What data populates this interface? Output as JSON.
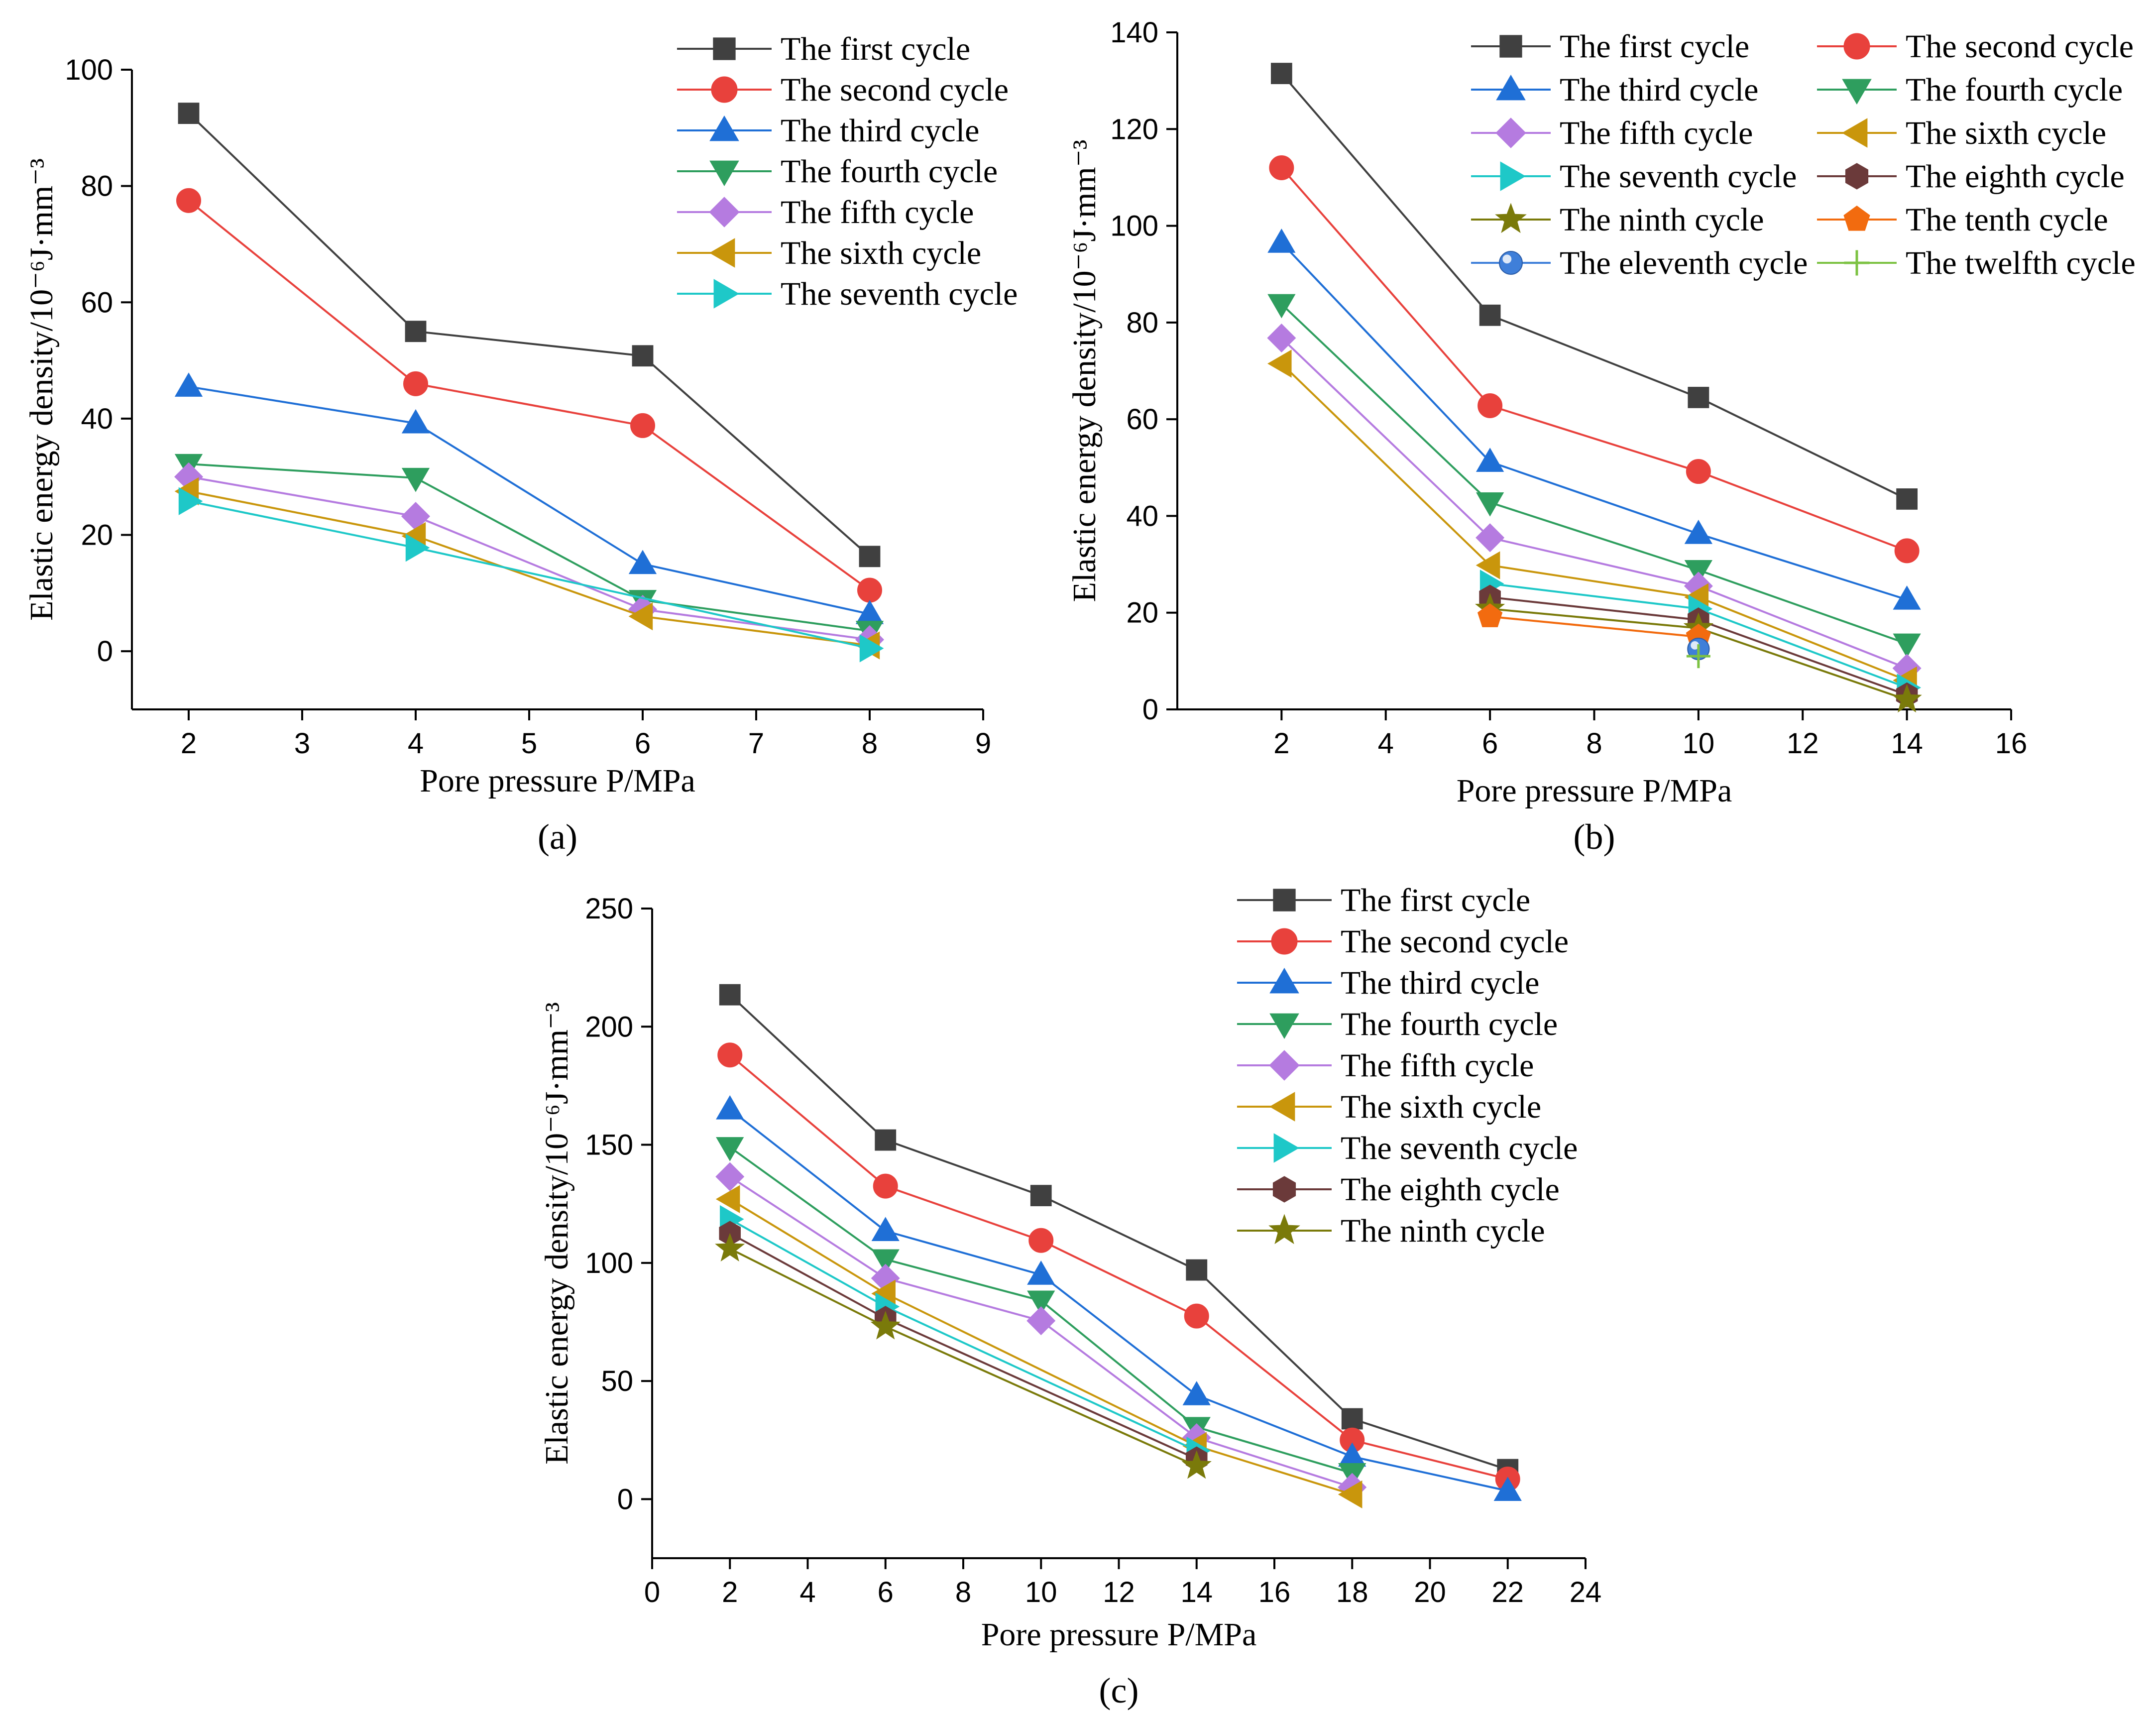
{
  "chart_data": [
    {
      "type": "line",
      "panel_label": "(a)",
      "xlabel": "Pore pressure  P/MPa",
      "ylabel": "Elastic energy density/10⁻⁶J·mm⁻³",
      "xlim": [
        1.5,
        9
      ],
      "ylim": [
        -10,
        100
      ],
      "xticks": [
        2,
        3,
        4,
        5,
        6,
        7,
        8,
        9
      ],
      "yticks": [
        0,
        20,
        40,
        60,
        80,
        100
      ],
      "legend_position": "top-right",
      "legend_columns": 1,
      "series": [
        {
          "name": "The first cycle",
          "color": "#404040",
          "marker": "square",
          "x": [
            2,
            4,
            6,
            8
          ],
          "y": [
            92.5,
            55,
            50.8,
            16.3
          ]
        },
        {
          "name": "The second cycle",
          "color": "#e8413c",
          "marker": "circle",
          "x": [
            2,
            4,
            6,
            8
          ],
          "y": [
            77.5,
            46,
            38.8,
            10.5
          ]
        },
        {
          "name": "The third cycle",
          "color": "#1f6fd6",
          "marker": "triangle-up",
          "x": [
            2,
            4,
            6,
            8
          ],
          "y": [
            45.5,
            39.2,
            15,
            6.4
          ]
        },
        {
          "name": "The fourth cycle",
          "color": "#2e9e5e",
          "marker": "triangle-down",
          "x": [
            2,
            4,
            6,
            8
          ],
          "y": [
            32.2,
            29.8,
            8.8,
            3.5
          ]
        },
        {
          "name": "The fifth cycle",
          "color": "#b57be0",
          "marker": "diamond",
          "x": [
            2,
            4,
            6,
            8
          ],
          "y": [
            30,
            23.2,
            7.2,
            2
          ]
        },
        {
          "name": "The sixth cycle",
          "color": "#c9960c",
          "marker": "triangle-left",
          "x": [
            2,
            4,
            6,
            8
          ],
          "y": [
            27.5,
            19.8,
            6,
            1
          ]
        },
        {
          "name": "The seventh cycle",
          "color": "#1ec8c8",
          "marker": "triangle-right",
          "x": [
            2,
            4,
            8
          ],
          "y": [
            25.8,
            17.8,
            0.5
          ]
        }
      ]
    },
    {
      "type": "line",
      "panel_label": "(b)",
      "xlabel": "Pore pressure  P/MPa",
      "ylabel": "Elastic energy density/10⁻⁶J·mm⁻³",
      "xlim": [
        0,
        16
      ],
      "ylim": [
        0,
        140
      ],
      "xticks": [
        2,
        4,
        6,
        8,
        10,
        12,
        14,
        16
      ],
      "yticks": [
        0,
        20,
        40,
        60,
        80,
        100,
        120,
        140
      ],
      "legend_position": "top",
      "legend_columns": 2,
      "series": [
        {
          "name": "The first cycle",
          "color": "#404040",
          "marker": "square",
          "x": [
            2,
            6,
            10,
            14
          ],
          "y": [
            131.5,
            81.5,
            64.5,
            43.5
          ]
        },
        {
          "name": "The second cycle",
          "color": "#e8413c",
          "marker": "circle",
          "x": [
            2,
            6,
            10,
            14
          ],
          "y": [
            112,
            62.8,
            49.2,
            32.8
          ]
        },
        {
          "name": "The third cycle",
          "color": "#1f6fd6",
          "marker": "triangle-up",
          "x": [
            2,
            6,
            10,
            14
          ],
          "y": [
            96.5,
            51.2,
            36.3,
            22.7
          ]
        },
        {
          "name": "The fourth cycle",
          "color": "#2e9e5e",
          "marker": "triangle-down",
          "x": [
            2,
            6,
            10,
            14
          ],
          "y": [
            83.8,
            42.8,
            28.8,
            13.6
          ]
        },
        {
          "name": "The fifth cycle",
          "color": "#b57be0",
          "marker": "diamond",
          "x": [
            2,
            6,
            10,
            14
          ],
          "y": [
            76.8,
            35.5,
            25.5,
            8.5
          ]
        },
        {
          "name": "The sixth cycle",
          "color": "#c9960c",
          "marker": "triangle-left",
          "x": [
            2,
            6,
            10,
            14
          ],
          "y": [
            71.5,
            29.8,
            23.2,
            6
          ]
        },
        {
          "name": "The seventh cycle",
          "color": "#1ec8c8",
          "marker": "triangle-right",
          "x": [
            6,
            10,
            14
          ],
          "y": [
            26,
            20.8,
            4.5
          ]
        },
        {
          "name": "The eighth cycle",
          "color": "#6b3a3a",
          "marker": "hexagon",
          "x": [
            6,
            10,
            14
          ],
          "y": [
            23.2,
            18.5,
            3
          ]
        },
        {
          "name": "The ninth cycle",
          "color": "#7a7a0a",
          "marker": "star",
          "x": [
            6,
            10,
            14
          ],
          "y": [
            20.8,
            16.8,
            2
          ]
        },
        {
          "name": "The tenth cycle",
          "color": "#f26b0f",
          "marker": "pentagon",
          "x": [
            6,
            10
          ],
          "y": [
            19.2,
            15
          ]
        },
        {
          "name": "The eleventh cycle",
          "color": "#3f7fd9",
          "marker": "sphere",
          "x": [
            10
          ],
          "y": [
            12.5
          ]
        },
        {
          "name": "The twelfth cycle",
          "color": "#7cc242",
          "marker": "plus",
          "x": [
            10
          ],
          "y": [
            11
          ]
        }
      ]
    },
    {
      "type": "line",
      "panel_label": "(c)",
      "xlabel": "Pore pressure  P/MPa",
      "ylabel": "Elastic energy density/10⁻⁶J·mm⁻³",
      "xlim": [
        0,
        24
      ],
      "ylim": [
        -25,
        250
      ],
      "xticks": [
        0,
        2,
        4,
        6,
        8,
        10,
        12,
        14,
        16,
        18,
        20,
        22,
        24
      ],
      "yticks": [
        0,
        50,
        100,
        150,
        200,
        250
      ],
      "legend_position": "top-right",
      "legend_columns": 1,
      "series": [
        {
          "name": "The first cycle",
          "color": "#404040",
          "marker": "square",
          "x": [
            2,
            6,
            10,
            14,
            18,
            22
          ],
          "y": [
            213.5,
            152,
            128.5,
            97,
            34,
            12.5
          ]
        },
        {
          "name": "The second cycle",
          "color": "#e8413c",
          "marker": "circle",
          "x": [
            2,
            6,
            10,
            14,
            18,
            22
          ],
          "y": [
            188,
            132.5,
            109.5,
            77.5,
            25,
            8.5
          ]
        },
        {
          "name": "The third cycle",
          "color": "#1f6fd6",
          "marker": "triangle-up",
          "x": [
            2,
            6,
            10,
            14,
            18,
            22
          ],
          "y": [
            165,
            113.5,
            95,
            44,
            18,
            3.5
          ]
        },
        {
          "name": "The fourth cycle",
          "color": "#2e9e5e",
          "marker": "triangle-down",
          "x": [
            2,
            6,
            10,
            14,
            18
          ],
          "y": [
            149,
            101.5,
            84,
            30.5,
            11
          ]
        },
        {
          "name": "The fifth cycle",
          "color": "#b57be0",
          "marker": "diamond",
          "x": [
            2,
            6,
            10,
            14,
            18
          ],
          "y": [
            136.5,
            93.5,
            75.5,
            26,
            5
          ]
        },
        {
          "name": "The sixth cycle",
          "color": "#c9960c",
          "marker": "triangle-left",
          "x": [
            2,
            6,
            14,
            18
          ],
          "y": [
            127,
            87,
            22.5,
            2
          ]
        },
        {
          "name": "The seventh cycle",
          "color": "#1ec8c8",
          "marker": "triangle-right",
          "x": [
            2,
            6,
            14
          ],
          "y": [
            118.5,
            81.5,
            20.5
          ]
        },
        {
          "name": "The eighth cycle",
          "color": "#6b3a3a",
          "marker": "hexagon",
          "x": [
            2,
            6,
            14
          ],
          "y": [
            112.5,
            76.5,
            17
          ]
        },
        {
          "name": "The ninth cycle",
          "color": "#7a7a0a",
          "marker": "star",
          "x": [
            2,
            6,
            14
          ],
          "y": [
            106,
            73,
            14
          ]
        }
      ]
    }
  ]
}
